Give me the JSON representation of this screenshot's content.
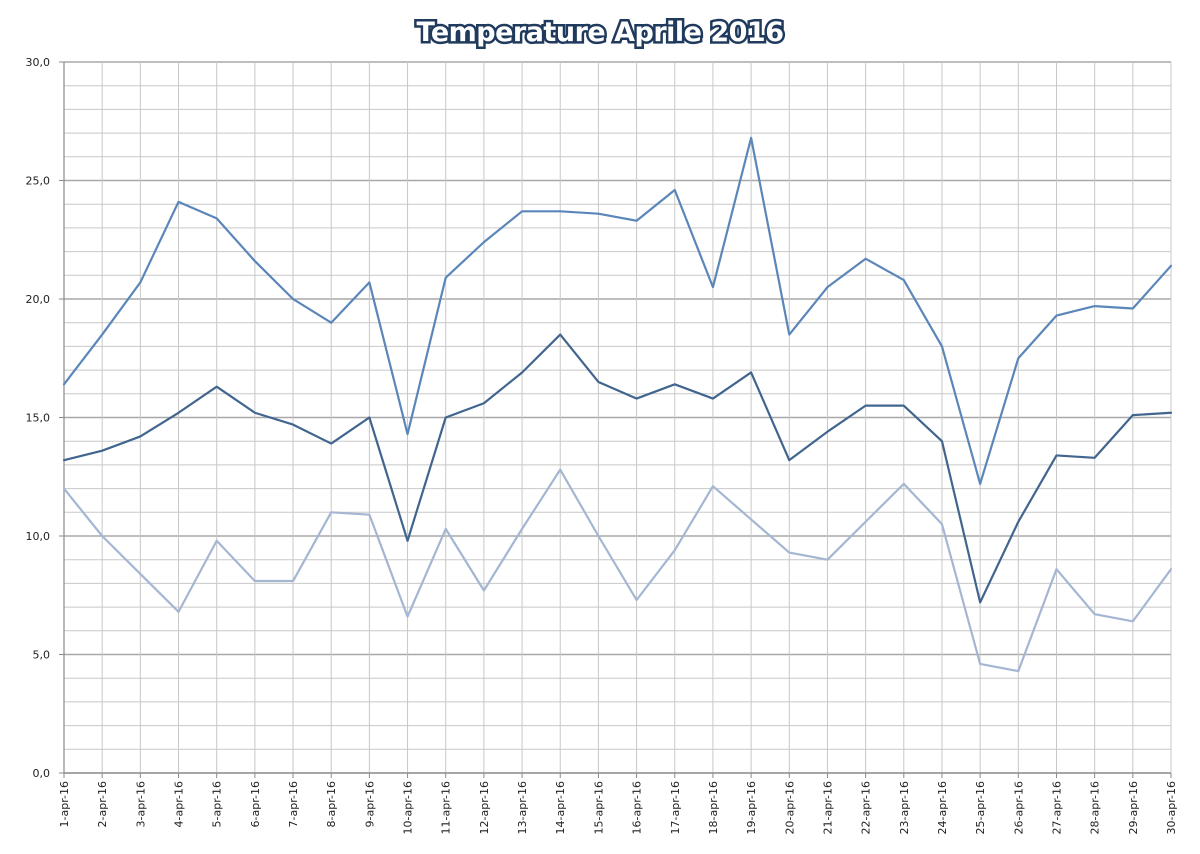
{
  "chart_data": {
    "type": "line",
    "title": "Temperature Aprile 2016",
    "xlabel": "",
    "ylabel": "",
    "ylim": [
      0,
      30
    ],
    "y_ticks": [
      "0,0",
      "5,0",
      "10,0",
      "15,0",
      "20,0",
      "25,0",
      "30,0"
    ],
    "grid": true,
    "legend": "none",
    "categories": [
      "1-apr-16",
      "2-apr-16",
      "3-apr-16",
      "4-apr-16",
      "5-apr-16",
      "6-apr-16",
      "7-apr-16",
      "8-apr-16",
      "9-apr-16",
      "10-apr-16",
      "11-apr-16",
      "12-apr-16",
      "13-apr-16",
      "14-apr-16",
      "15-apr-16",
      "16-apr-16",
      "17-apr-16",
      "18-apr-16",
      "19-apr-16",
      "20-apr-16",
      "21-apr-16",
      "22-apr-16",
      "23-apr-16",
      "24-apr-16",
      "25-apr-16",
      "26-apr-16",
      "27-apr-16",
      "28-apr-16",
      "29-apr-16",
      "30-apr-16"
    ],
    "series": [
      {
        "color": "#5b86b9",
        "values": [
          16.4,
          18.5,
          20.7,
          24.1,
          23.4,
          21.6,
          20.0,
          19.0,
          20.7,
          14.3,
          20.9,
          22.4,
          23.7,
          23.7,
          23.6,
          23.3,
          24.6,
          20.5,
          26.8,
          18.5,
          20.5,
          21.7,
          20.8,
          18.0,
          12.2,
          17.5,
          19.3,
          19.7,
          19.6,
          21.4
        ]
      },
      {
        "color": "#42658f",
        "values": [
          13.2,
          13.6,
          14.2,
          15.2,
          16.3,
          15.2,
          14.7,
          13.9,
          15.0,
          9.8,
          15.0,
          15.6,
          16.9,
          18.5,
          16.5,
          15.8,
          16.4,
          15.8,
          16.9,
          13.2,
          14.4,
          15.5,
          15.5,
          14.0,
          7.2,
          10.6,
          13.4,
          13.3,
          15.1,
          15.2
        ]
      },
      {
        "color": "#a5b6d2",
        "values": [
          12.0,
          10.0,
          8.4,
          6.8,
          9.8,
          8.1,
          8.1,
          11.0,
          10.9,
          6.6,
          10.3,
          7.7,
          10.3,
          12.8,
          10.0,
          7.3,
          9.4,
          12.1,
          10.7,
          9.3,
          9.0,
          10.6,
          12.2,
          10.5,
          4.6,
          4.3,
          8.6,
          6.7,
          6.4,
          8.6
        ]
      }
    ]
  },
  "style": {
    "grid_color": "#c8c8c8",
    "axis_color": "#8a8a8a",
    "title_fill": "#ffffff",
    "title_outline": "#1f3a5c"
  }
}
